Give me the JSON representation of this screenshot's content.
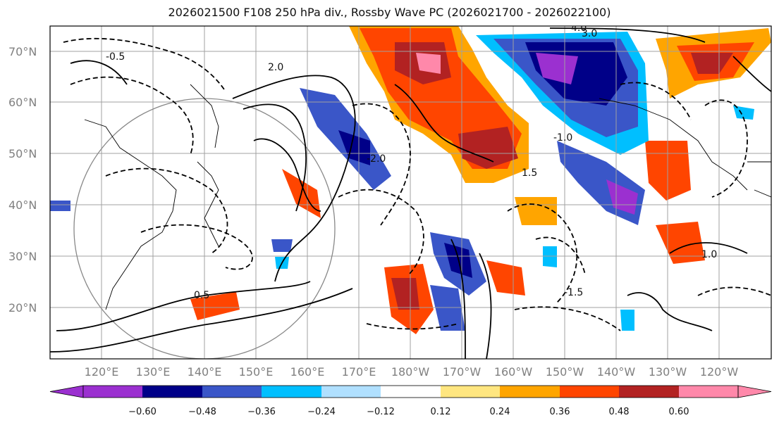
{
  "title": "2026021500 F108 250 hPa div., Rossby Wave PC (2026021700 - 2026022100)",
  "lat_labels": [
    "70°N",
    "60°N",
    "50°N",
    "40°N",
    "30°N",
    "20°N"
  ],
  "lon_labels": [
    "120°E",
    "130°E",
    "140°E",
    "150°E",
    "160°E",
    "170°E",
    "180°W",
    "170°W",
    "160°W",
    "150°W",
    "140°W",
    "130°W",
    "120°W"
  ],
  "contour_labels": [
    "-0.5",
    "-1.0",
    "-1.5",
    "-2.0",
    "0.5",
    "1.0",
    "1.5",
    "2.0",
    "3.0",
    "4.0"
  ],
  "colorbar": {
    "ticks": [
      "−0.60",
      "−0.48",
      "−0.36",
      "−0.24",
      "−0.12",
      "0.12",
      "0.24",
      "0.36",
      "0.48",
      "0.60"
    ],
    "colors": [
      "#9b30d0",
      "#000088",
      "#3a56c8",
      "#00bfff",
      "#b0e0ff",
      "#ffffff",
      "#ffe680",
      "#ffa500",
      "#ff4500",
      "#b22222",
      "#ff88aa"
    ]
  }
}
